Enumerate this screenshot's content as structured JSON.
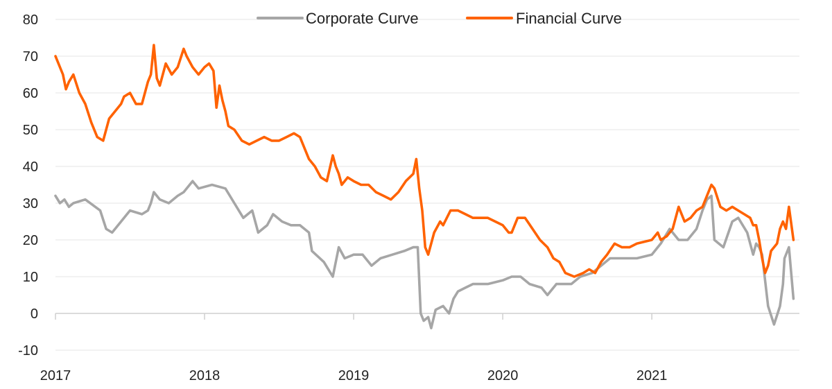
{
  "chart_data": {
    "type": "line",
    "title": "",
    "xlabel": "",
    "ylabel": "",
    "xlim": [
      2017.0,
      2021.99
    ],
    "ylim": [
      -10,
      80
    ],
    "y_ticks": [
      -10,
      0,
      10,
      20,
      30,
      40,
      50,
      60,
      70,
      80
    ],
    "x_ticks": [
      2017,
      2018,
      2019,
      2020,
      2021
    ],
    "x_tick_labels": [
      "2017",
      "2018",
      "2019",
      "2020",
      "2021"
    ],
    "grid": "horizontal",
    "legend_position": "top-center",
    "series": [
      {
        "name": "Corporate Curve",
        "color": "#a6a6a6",
        "x": [
          2017.0,
          2017.03,
          2017.06,
          2017.09,
          2017.12,
          2017.2,
          2017.3,
          2017.34,
          2017.38,
          2017.44,
          2017.48,
          2017.5,
          2017.58,
          2017.62,
          2017.64,
          2017.66,
          2017.7,
          2017.76,
          2017.82,
          2017.86,
          2017.92,
          2017.96,
          2018.05,
          2018.14,
          2018.2,
          2018.26,
          2018.32,
          2018.36,
          2018.42,
          2018.46,
          2018.52,
          2018.58,
          2018.64,
          2018.7,
          2018.72,
          2018.8,
          2018.86,
          2018.9,
          2018.94,
          2019.0,
          2019.06,
          2019.12,
          2019.18,
          2019.26,
          2019.34,
          2019.4,
          2019.43,
          2019.45,
          2019.47,
          2019.5,
          2019.52,
          2019.55,
          2019.6,
          2019.62,
          2019.64,
          2019.67,
          2019.7,
          2019.75,
          2019.8,
          2019.9,
          2020.0,
          2020.06,
          2020.12,
          2020.18,
          2020.26,
          2020.3,
          2020.36,
          2020.4,
          2020.46,
          2020.52,
          2020.6,
          2020.66,
          2020.72,
          2020.8,
          2020.9,
          2021.0,
          2021.06,
          2021.12,
          2021.18,
          2021.24,
          2021.3,
          2021.34,
          2021.37,
          2021.4,
          2021.42,
          2021.48,
          2021.54,
          2021.58,
          2021.64,
          2021.68,
          2021.7,
          2021.72,
          2021.74,
          2021.78,
          2021.82,
          2021.86,
          2021.88,
          2021.89,
          2021.92,
          2021.95
        ],
        "values": [
          32,
          30,
          31,
          29,
          30,
          31,
          28,
          23,
          22,
          25,
          27,
          28,
          27,
          28,
          30,
          33,
          31,
          30,
          32,
          33,
          36,
          34,
          35,
          34,
          30,
          26,
          28,
          22,
          24,
          27,
          25,
          24,
          24,
          22,
          17,
          14,
          10,
          18,
          15,
          16,
          16,
          13,
          15,
          16,
          17,
          18,
          18,
          0,
          -2,
          -1,
          -4,
          1,
          2,
          1,
          0,
          4,
          6,
          7,
          8,
          8,
          9,
          10,
          10,
          8,
          7,
          5,
          8,
          8,
          8,
          10,
          11,
          13,
          15,
          15,
          15,
          16,
          19,
          23,
          20,
          20,
          23,
          28,
          31,
          32,
          20,
          18,
          25,
          26,
          22,
          16,
          19,
          18,
          16,
          2,
          -3,
          2,
          8,
          15,
          18,
          4
        ]
      },
      {
        "name": "Financial Curve",
        "color": "#ff6200",
        "x": [
          2017.0,
          2017.02,
          2017.05,
          2017.07,
          2017.09,
          2017.12,
          2017.16,
          2017.2,
          2017.24,
          2017.28,
          2017.32,
          2017.34,
          2017.36,
          2017.4,
          2017.44,
          2017.46,
          2017.5,
          2017.54,
          2017.58,
          2017.6,
          2017.62,
          2017.64,
          2017.66,
          2017.68,
          2017.7,
          2017.74,
          2017.78,
          2017.82,
          2017.86,
          2017.88,
          2017.92,
          2017.96,
          2018.0,
          2018.03,
          2018.06,
          2018.08,
          2018.1,
          2018.12,
          2018.14,
          2018.16,
          2018.2,
          2018.25,
          2018.3,
          2018.35,
          2018.4,
          2018.45,
          2018.5,
          2018.55,
          2018.6,
          2018.64,
          2018.7,
          2018.74,
          2018.78,
          2018.82,
          2018.86,
          2018.88,
          2018.9,
          2018.92,
          2018.96,
          2019.0,
          2019.05,
          2019.1,
          2019.15,
          2019.2,
          2019.25,
          2019.3,
          2019.35,
          2019.4,
          2019.42,
          2019.44,
          2019.46,
          2019.48,
          2019.5,
          2019.54,
          2019.58,
          2019.6,
          2019.65,
          2019.7,
          2019.75,
          2019.8,
          2019.9,
          2020.0,
          2020.04,
          2020.06,
          2020.1,
          2020.15,
          2020.2,
          2020.25,
          2020.3,
          2020.34,
          2020.38,
          2020.42,
          2020.48,
          2020.54,
          2020.58,
          2020.62,
          2020.66,
          2020.7,
          2020.75,
          2020.8,
          2020.85,
          2020.9,
          2021.0,
          2021.02,
          2021.04,
          2021.06,
          2021.1,
          2021.14,
          2021.18,
          2021.22,
          2021.26,
          2021.3,
          2021.34,
          2021.36,
          2021.38,
          2021.4,
          2021.42,
          2021.46,
          2021.5,
          2021.54,
          2021.58,
          2021.62,
          2021.66,
          2021.68,
          2021.7,
          2021.72,
          2021.74,
          2021.76,
          2021.78,
          2021.8,
          2021.84,
          2021.86,
          2021.88,
          2021.9,
          2021.92,
          2021.95
        ],
        "values": [
          70,
          68,
          65,
          61,
          63,
          65,
          60,
          57,
          52,
          48,
          47,
          50,
          53,
          55,
          57,
          59,
          60,
          57,
          57,
          60,
          63,
          65,
          73,
          64,
          62,
          68,
          65,
          67,
          72,
          70,
          67,
          65,
          67,
          68,
          66,
          56,
          62,
          58,
          55,
          51,
          50,
          47,
          46,
          47,
          48,
          47,
          47,
          48,
          49,
          48,
          42,
          40,
          37,
          36,
          43,
          40,
          38,
          35,
          37,
          36,
          35,
          35,
          33,
          32,
          31,
          33,
          36,
          38,
          42,
          34,
          28,
          18,
          16,
          22,
          25,
          24,
          28,
          28,
          27,
          26,
          26,
          24,
          22,
          22,
          26,
          26,
          23,
          20,
          18,
          15,
          14,
          11,
          10,
          11,
          12,
          11,
          14,
          16,
          19,
          18,
          18,
          19,
          20,
          21,
          22,
          20,
          21,
          23,
          29,
          25,
          26,
          28,
          29,
          31,
          33,
          35,
          34,
          29,
          28,
          29,
          28,
          27,
          26,
          24,
          24,
          20,
          15,
          11,
          13,
          17,
          19,
          23,
          25,
          23,
          29,
          20
        ]
      }
    ]
  }
}
